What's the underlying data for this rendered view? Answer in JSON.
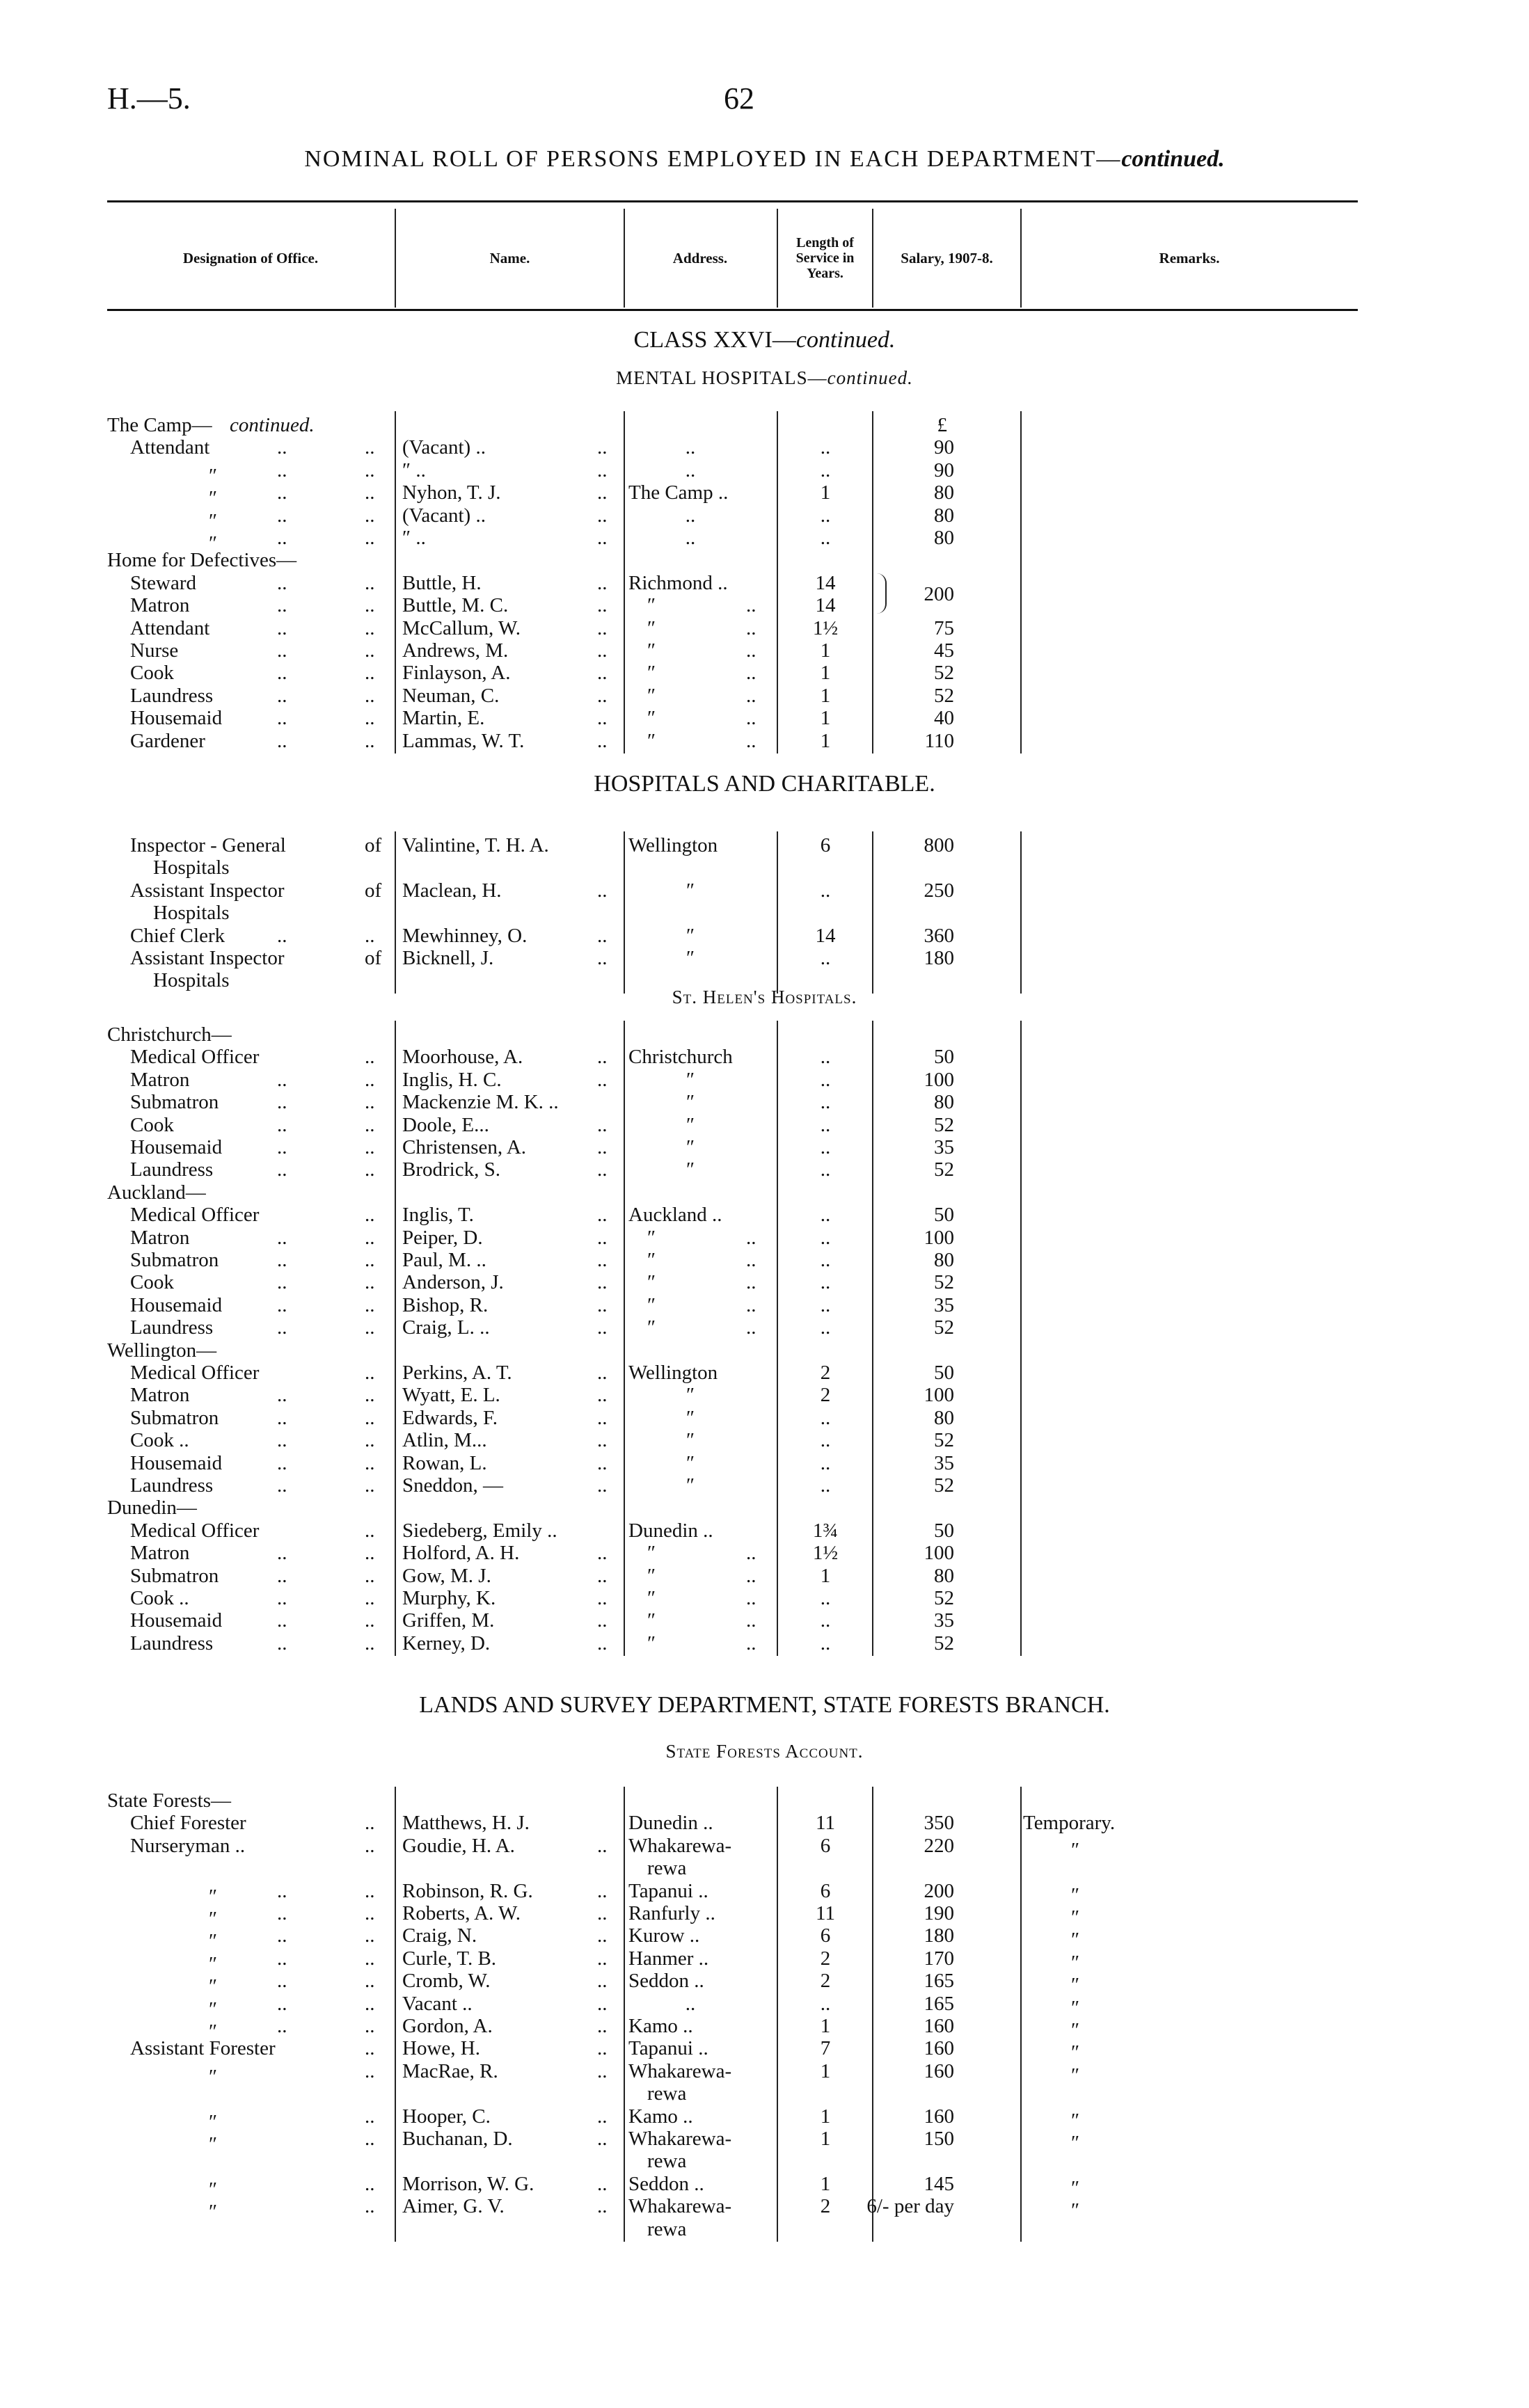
{
  "page": {
    "id": "H.—5.",
    "number": "62"
  },
  "title": {
    "main": "NOMINAL ROLL OF PERSONS EMPLOYED IN EACH DEPARTMENT—",
    "suffix": "continued."
  },
  "columns": {
    "designation": "Designation of Office.",
    "name": "Name.",
    "address": "Address.",
    "length": "Length of Service in Years.",
    "salary": "Salary, 1907-8.",
    "remarks": "Remarks."
  },
  "sections": [
    {
      "heading": "CLASS XXVI—",
      "heading_suffix": "continued.",
      "subheading": "MENTAL HOSPITALS—",
      "subheading_suffix": "continued.",
      "rows": [
        {
          "level": 0,
          "d": "The Camp—",
          "di": "continued.",
          "s": "£"
        },
        {
          "level": 1,
          "d": "Attendant",
          "dm": "..",
          "de": "..",
          "n": "(Vacant) ..",
          "ne": "..",
          "ac": "..",
          "l": "..",
          "s": "90"
        },
        {
          "level": 2,
          "d": "″",
          "dm": "..",
          "de": "..",
          "n": "    ″       ..",
          "ne": "..",
          "ac": "..",
          "l": "..",
          "s": "90"
        },
        {
          "level": 2,
          "d": "″",
          "dm": "..",
          "de": "..",
          "n": "Nyhon, T. J.",
          "ne": "..",
          "a": "The Camp ..",
          "l": "1",
          "s": "80"
        },
        {
          "level": 2,
          "d": "″",
          "dm": "..",
          "de": "..",
          "n": "(Vacant) ..",
          "ne": "..",
          "ac": "..",
          "l": "..",
          "s": "80"
        },
        {
          "level": 2,
          "d": "″",
          "dm": "..",
          "de": "..",
          "n": "    ″       ..",
          "ne": "..",
          "ac": "..",
          "l": "..",
          "s": "80"
        },
        {
          "level": 0,
          "d": "Home for Defectives—"
        },
        {
          "level": 1,
          "d": "Steward",
          "dm": "..",
          "de": "..",
          "n": "Buttle, H.",
          "ne": "..",
          "a": "Richmond ..",
          "l": "14",
          "s": "200",
          "brace": true
        },
        {
          "level": 1,
          "d": "Matron",
          "dm": "..",
          "de": "..",
          "n": "Buttle, M. C.",
          "ne": "..",
          "ar": "″",
          "ae": "..",
          "l": "14"
        },
        {
          "level": 1,
          "d": "Attendant",
          "dm": "..",
          "de": "..",
          "n": "McCallum, W.",
          "ne": "..",
          "ar": "″",
          "ae": "..",
          "l": "1½",
          "s": "75"
        },
        {
          "level": 1,
          "d": "Nurse",
          "dm": "..",
          "de": "..",
          "n": "Andrews, M.",
          "ne": "..",
          "ar": "″",
          "ae": "..",
          "l": "1",
          "s": "45"
        },
        {
          "level": 1,
          "d": "Cook",
          "dm": "..",
          "de": "..",
          "n": "Finlayson, A.",
          "ne": "..",
          "ar": "″",
          "ae": "..",
          "l": "1",
          "s": "52"
        },
        {
          "level": 1,
          "d": "Laundress",
          "dm": "..",
          "de": "..",
          "n": "Neuman, C.",
          "ne": "..",
          "ar": "″",
          "ae": "..",
          "l": "1",
          "s": "52"
        },
        {
          "level": 1,
          "d": "Housemaid",
          "dm": "..",
          "de": "..",
          "n": "Martin, E.",
          "ne": "..",
          "ar": "″",
          "ae": "..",
          "l": "1",
          "s": "40"
        },
        {
          "level": 1,
          "d": "Gardener",
          "dm": "..",
          "de": "..",
          "n": "Lammas, W. T.",
          "ne": "..",
          "ar": "″",
          "ae": "..",
          "l": "1",
          "s": "110"
        }
      ]
    },
    {
      "heading": "HOSPITALS AND CHARITABLE.",
      "rows": [
        {
          "level": 1,
          "d": "Inspector - General",
          "de": "of",
          "n": "Valintine, T. H. A.",
          "a": "Wellington",
          "l": "6",
          "s": "800"
        },
        {
          "level": 2,
          "d": "Hospitals"
        },
        {
          "level": 1,
          "d": "Assistant  Inspector",
          "de": "of",
          "n": "Maclean, H.",
          "ne": "..",
          "ac": "″",
          "l": "..",
          "s": "250"
        },
        {
          "level": 2,
          "d": "Hospitals"
        },
        {
          "level": 1,
          "d": "Chief Clerk",
          "dm": "..",
          "de": "..",
          "n": "Mewhinney, O.",
          "ne": "..",
          "ac": "″",
          "l": "14",
          "s": "360"
        },
        {
          "level": 1,
          "d": "Assistant  Inspector",
          "de": "of",
          "n": "Bicknell, J.",
          "ne": "..",
          "ac": "″",
          "l": "..",
          "s": "180"
        },
        {
          "level": 2,
          "d": "Hospitals"
        }
      ]
    },
    {
      "subheading": "St. Helen's Hospitals.",
      "rows": [
        {
          "level": 0,
          "d": "Christchurch—"
        },
        {
          "level": 1,
          "d": "Medical Officer",
          "de": "..",
          "n": "Moorhouse, A.",
          "ne": "..",
          "a": "Christchurch",
          "l": "..",
          "s": "50"
        },
        {
          "level": 1,
          "d": "Matron",
          "dm": "..",
          "de": "..",
          "n": "Inglis, H. C.",
          "ne": "..",
          "ac": "″",
          "l": "..",
          "s": "100"
        },
        {
          "level": 1,
          "d": "Submatron",
          "dm": "..",
          "de": "..",
          "n": "Mackenzie M. K. ..",
          "ac": "″",
          "l": "..",
          "s": "80"
        },
        {
          "level": 1,
          "d": "Cook",
          "dm": "..",
          "de": "..",
          "n": "Doole, E...",
          "ne": "..",
          "ac": "″",
          "l": "..",
          "s": "52"
        },
        {
          "level": 1,
          "d": "Housemaid",
          "dm": "..",
          "de": "..",
          "n": "Christensen, A.",
          "ne": "..",
          "ac": "″",
          "l": "..",
          "s": "35"
        },
        {
          "level": 1,
          "d": "Laundress",
          "dm": "..",
          "de": "..",
          "n": "Brodrick, S.",
          "ne": "..",
          "ac": "″",
          "l": "..",
          "s": "52"
        },
        {
          "level": 0,
          "d": "Auckland—"
        },
        {
          "level": 1,
          "d": "Medical Officer",
          "de": "..",
          "n": "Inglis, T.",
          "ne": "..",
          "a": "Auckland ..",
          "l": "..",
          "s": "50"
        },
        {
          "level": 1,
          "d": "Matron",
          "dm": "..",
          "de": "..",
          "n": "Peiper, D.",
          "ne": "..",
          "ar": "″",
          "ae": "..",
          "l": "..",
          "s": "100"
        },
        {
          "level": 1,
          "d": "Submatron",
          "dm": "..",
          "de": "..",
          "n": "Paul, M. ..",
          "ne": "..",
          "ar": "″",
          "ae": "..",
          "l": "..",
          "s": "80"
        },
        {
          "level": 1,
          "d": "Cook",
          "dm": "..",
          "de": "..",
          "n": "Anderson, J.",
          "ne": "..",
          "ar": "″",
          "ae": "..",
          "l": "..",
          "s": "52"
        },
        {
          "level": 1,
          "d": "Housemaid",
          "dm": "..",
          "de": "..",
          "n": "Bishop, R.",
          "ne": "..",
          "ar": "″",
          "ae": "..",
          "l": "..",
          "s": "35"
        },
        {
          "level": 1,
          "d": "Laundress",
          "dm": "..",
          "de": "..",
          "n": "Craig, L. ..",
          "ne": "..",
          "ar": "″",
          "ae": "..",
          "l": "..",
          "s": "52"
        },
        {
          "level": 0,
          "d": "Wellington—"
        },
        {
          "level": 1,
          "d": "Medical Officer",
          "de": "..",
          "n": "Perkins, A. T.",
          "ne": "..",
          "a": "Wellington",
          "l": "2",
          "s": "50"
        },
        {
          "level": 1,
          "d": "Matron",
          "dm": "..",
          "de": "..",
          "n": "Wyatt, E. L.",
          "ne": "..",
          "ac": "″",
          "l": "2",
          "s": "100"
        },
        {
          "level": 1,
          "d": "Submatron",
          "dm": "..",
          "de": "..",
          "n": "Edwards, F.",
          "ne": "..",
          "ac": "″",
          "l": "..",
          "s": "80"
        },
        {
          "level": 1,
          "d": "Cook ..",
          "dm": "..",
          "de": "..",
          "n": "Atlin, M...",
          "ne": "..",
          "ac": "″",
          "l": "..",
          "s": "52"
        },
        {
          "level": 1,
          "d": "Housemaid",
          "dm": "..",
          "de": "..",
          "n": "Rowan, L.",
          "ne": "..",
          "ac": "″",
          "l": "..",
          "s": "35"
        },
        {
          "level": 1,
          "d": "Laundress",
          "dm": "..",
          "de": "..",
          "n": "Sneddon, —",
          "ne": "..",
          "ac": "″",
          "l": "..",
          "s": "52"
        },
        {
          "level": 0,
          "d": "Dunedin—"
        },
        {
          "level": 1,
          "d": "Medical Officer",
          "de": "..",
          "n": "Siedeberg, Emily ..",
          "a": "Dunedin ..",
          "l": "1¾",
          "s": "50"
        },
        {
          "level": 1,
          "d": "Matron",
          "dm": "..",
          "de": "..",
          "n": "Holford, A. H.",
          "ne": "..",
          "ar": "″",
          "ae": "..",
          "l": "1½",
          "s": "100"
        },
        {
          "level": 1,
          "d": "Submatron",
          "dm": "..",
          "de": "..",
          "n": "Gow, M. J.",
          "ne": "..",
          "ar": "″",
          "ae": "..",
          "l": "1",
          "s": "80"
        },
        {
          "level": 1,
          "d": "Cook ..",
          "dm": "..",
          "de": "..",
          "n": "Murphy, K.",
          "ne": "..",
          "ar": "″",
          "ae": "..",
          "l": "..",
          "s": "52"
        },
        {
          "level": 1,
          "d": "Housemaid",
          "dm": "..",
          "de": "..",
          "n": "Griffen, M.",
          "ne": "..",
          "ar": "″",
          "ae": "..",
          "l": "..",
          "s": "35"
        },
        {
          "level": 1,
          "d": "Laundress",
          "dm": "..",
          "de": "..",
          "n": "Kerney, D.",
          "ne": "..",
          "ar": "″",
          "ae": "..",
          "l": "..",
          "s": "52"
        }
      ]
    },
    {
      "heading": "LANDS AND SURVEY DEPARTMENT, STATE FORESTS BRANCH.",
      "subheading": "State Forests Account.",
      "rows": [
        {
          "level": 0,
          "d": "State Forests—"
        },
        {
          "level": 1,
          "d": "Chief Forester",
          "de": "..",
          "n": "Matthews,   H.   J.",
          "a": "Dunedin ..",
          "l": "11",
          "s": "350",
          "r": "Temporary."
        },
        {
          "level": 1,
          "d": "Nurseryman ..",
          "de": "..",
          "n": "Goudie, H. A.",
          "ne": "..",
          "a": "Whakarewa-",
          "l": "6",
          "s": "220",
          "rc": "″"
        },
        {
          "ar": "rewa"
        },
        {
          "level": 2,
          "d": "″",
          "dm": "..",
          "de": "..",
          "n": "Robinson, R. G.",
          "ne": "..",
          "a": "Tapanui ..",
          "l": "6",
          "s": "200",
          "rc": "″"
        },
        {
          "level": 2,
          "d": "″",
          "dm": "..",
          "de": "..",
          "n": "Roberts, A. W.",
          "ne": "..",
          "a": "Ranfurly ..",
          "l": "11",
          "s": "190",
          "rc": "″"
        },
        {
          "level": 2,
          "d": "″",
          "dm": "..",
          "de": "..",
          "n": "Craig, N.",
          "ne": "..",
          "a": "Kurow ..",
          "l": "6",
          "s": "180",
          "rc": "″"
        },
        {
          "level": 2,
          "d": "″",
          "dm": "..",
          "de": "..",
          "n": "Curle, T. B.",
          "ne": "..",
          "a": "Hanmer ..",
          "l": "2",
          "s": "170",
          "rc": "″"
        },
        {
          "level": 2,
          "d": "″",
          "dm": "..",
          "de": "..",
          "n": "Cromb, W.",
          "ne": "..",
          "a": "Seddon ..",
          "l": "2",
          "s": "165",
          "rc": "″"
        },
        {
          "level": 2,
          "d": "″",
          "dm": "..",
          "de": "..",
          "n": "Vacant  ..",
          "ne": "..",
          "ac": "..",
          "l": "..",
          "s": "165",
          "rc": "″"
        },
        {
          "level": 2,
          "d": "″",
          "dm": "..",
          "de": "..",
          "n": "Gordon, A.",
          "ne": "..",
          "a": "Kamo ..",
          "l": "1",
          "s": "160",
          "rc": "″"
        },
        {
          "level": 1,
          "d": "Assistant Forester",
          "de": "..",
          "n": "Howe, H.",
          "ne": "..",
          "a": "Tapanui ..",
          "l": "7",
          "s": "160",
          "rc": "″"
        },
        {
          "level": 2,
          "d": "″",
          "de": "..",
          "n": "MacRae, R.",
          "ne": "..",
          "a": "Whakarewa-",
          "l": "1",
          "s": "160",
          "rc": "″"
        },
        {
          "ar": "rewa"
        },
        {
          "level": 2,
          "d": "″",
          "de": "..",
          "n": "Hooper, C.",
          "ne": "..",
          "a": "Kamo ..",
          "l": "1",
          "s": "160",
          "rc": "″"
        },
        {
          "level": 2,
          "d": "″",
          "de": "..",
          "n": "Buchanan, D.",
          "ne": "..",
          "a": "Whakarewa-",
          "l": "1",
          "s": "150",
          "rc": "″"
        },
        {
          "ar": "rewa"
        },
        {
          "level": 2,
          "d": "″",
          "de": "..",
          "n": "Morrison, W. G.",
          "ne": "..",
          "a": "Seddon ..",
          "l": "1",
          "s": "145",
          "rc": "″"
        },
        {
          "level": 2,
          "d": "″",
          "de": "..",
          "n": "Aimer, G. V.",
          "ne": "..",
          "a": "Whakarewa-",
          "l": "2",
          "s": "6/- per day",
          "rc": "″"
        },
        {
          "ar": "rewa"
        }
      ]
    }
  ]
}
